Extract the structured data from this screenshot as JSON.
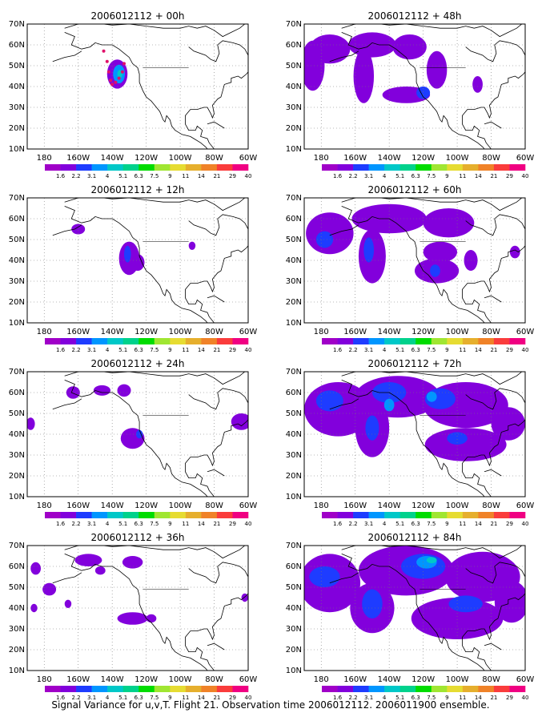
{
  "figure": {
    "caption": "Signal Variance for u,v,T. Flight 21. Observation time 2006012112. 2006011900 ensemble."
  },
  "axes": {
    "x_ticks": [
      {
        "lon": -180,
        "label": "180"
      },
      {
        "lon": -160,
        "label": "160W"
      },
      {
        "lon": -140,
        "label": "140W"
      },
      {
        "lon": -120,
        "label": "120W"
      },
      {
        "lon": -100,
        "label": "100W"
      },
      {
        "lon": -80,
        "label": "80W"
      },
      {
        "lon": -60,
        "label": "60W"
      }
    ],
    "y_ticks": [
      {
        "lat": 10,
        "label": "10N"
      },
      {
        "lat": 20,
        "label": "20N"
      },
      {
        "lat": 30,
        "label": "30N"
      },
      {
        "lat": 40,
        "label": "40N"
      },
      {
        "lat": 50,
        "label": "50N"
      },
      {
        "lat": 60,
        "label": "60N"
      },
      {
        "lat": 70,
        "label": "70N"
      }
    ],
    "lon_range": [
      -190,
      -60
    ],
    "lat_range": [
      10,
      70
    ],
    "grid": "dotted"
  },
  "colorbar": {
    "labels": [
      "1.6",
      "2.2",
      "3.1",
      "4",
      "5.1",
      "6.3",
      "7.5",
      "9",
      "11",
      "14",
      "21",
      "29",
      "40"
    ],
    "colors": [
      "#a000c8",
      "#8200dc",
      "#1e3cff",
      "#0096ff",
      "#00c8c8",
      "#00d28c",
      "#00dc00",
      "#a0e632",
      "#e6dc32",
      "#e6af2d",
      "#f08228",
      "#fa3c3c",
      "#f00082"
    ]
  },
  "chart_data": [
    {
      "type": "heatmap",
      "title": "2006012112 + 00h",
      "blobs": [
        {
          "lon": -137,
          "lat": 46,
          "rx": 6,
          "ry": 7,
          "level": 1
        },
        {
          "lon": -136,
          "lat": 46,
          "rx": 3.5,
          "ry": 4.5,
          "level": 3
        },
        {
          "lon": -135.5,
          "lat": 46,
          "rx": 1.5,
          "ry": 2,
          "level": 4
        }
      ],
      "track": [
        [
          -145,
          57
        ],
        [
          -143,
          52
        ],
        [
          -142,
          47
        ],
        [
          -141,
          43
        ],
        [
          -140,
          41
        ],
        [
          -138,
          42
        ],
        [
          -136,
          44
        ],
        [
          -134,
          47
        ],
        [
          -133,
          51
        ]
      ]
    },
    {
      "type": "heatmap",
      "title": "2006012112 + 48h",
      "blobs": [
        {
          "lon": -175,
          "lat": 58,
          "rx": 12,
          "ry": 7,
          "level": 1
        },
        {
          "lon": -185,
          "lat": 50,
          "rx": 7,
          "ry": 12,
          "level": 1
        },
        {
          "lon": -150,
          "lat": 60,
          "rx": 14,
          "ry": 6,
          "level": 1
        },
        {
          "lon": -128,
          "lat": 59,
          "rx": 10,
          "ry": 6,
          "level": 1
        },
        {
          "lon": -155,
          "lat": 45,
          "rx": 6,
          "ry": 13,
          "level": 1
        },
        {
          "lon": -112,
          "lat": 48,
          "rx": 6,
          "ry": 9,
          "level": 1
        },
        {
          "lon": -130,
          "lat": 36,
          "rx": 14,
          "ry": 4,
          "level": 1
        },
        {
          "lon": -88,
          "lat": 41,
          "rx": 3,
          "ry": 4,
          "level": 1
        },
        {
          "lon": -120,
          "lat": 37,
          "rx": 4,
          "ry": 3,
          "level": 2
        }
      ]
    },
    {
      "type": "heatmap",
      "title": "2006012112 + 12h",
      "blobs": [
        {
          "lon": -160,
          "lat": 55,
          "rx": 4,
          "ry": 2.5,
          "level": 1
        },
        {
          "lon": -130,
          "lat": 41,
          "rx": 6,
          "ry": 8,
          "level": 1
        },
        {
          "lon": -125,
          "lat": 39,
          "rx": 4,
          "ry": 4,
          "level": 1
        },
        {
          "lon": -131,
          "lat": 43,
          "rx": 2,
          "ry": 4,
          "level": 2
        },
        {
          "lon": -93,
          "lat": 47,
          "rx": 2,
          "ry": 2,
          "level": 1
        }
      ]
    },
    {
      "type": "heatmap",
      "title": "2006012112 + 60h",
      "blobs": [
        {
          "lon": -175,
          "lat": 53,
          "rx": 14,
          "ry": 10,
          "level": 1
        },
        {
          "lon": -140,
          "lat": 60,
          "rx": 22,
          "ry": 7,
          "level": 1
        },
        {
          "lon": -105,
          "lat": 58,
          "rx": 15,
          "ry": 7,
          "level": 1
        },
        {
          "lon": -150,
          "lat": 42,
          "rx": 8,
          "ry": 13,
          "level": 1
        },
        {
          "lon": -110,
          "lat": 44,
          "rx": 10,
          "ry": 5,
          "level": 1
        },
        {
          "lon": -112,
          "lat": 35,
          "rx": 13,
          "ry": 6,
          "level": 1
        },
        {
          "lon": -92,
          "lat": 40,
          "rx": 4,
          "ry": 5,
          "level": 1
        },
        {
          "lon": -66,
          "lat": 44,
          "rx": 3,
          "ry": 3,
          "level": 1
        },
        {
          "lon": -178,
          "lat": 50,
          "rx": 5,
          "ry": 4,
          "level": 2
        },
        {
          "lon": -152,
          "lat": 45,
          "rx": 3,
          "ry": 6,
          "level": 2
        },
        {
          "lon": -113,
          "lat": 35,
          "rx": 3,
          "ry": 3,
          "level": 2
        }
      ]
    },
    {
      "type": "heatmap",
      "title": "2006012112 + 24h",
      "blobs": [
        {
          "lon": -163,
          "lat": 60,
          "rx": 4,
          "ry": 3,
          "level": 1
        },
        {
          "lon": -146,
          "lat": 61,
          "rx": 5,
          "ry": 2.5,
          "level": 1
        },
        {
          "lon": -133,
          "lat": 61,
          "rx": 4,
          "ry": 3,
          "level": 1
        },
        {
          "lon": -128,
          "lat": 38,
          "rx": 7,
          "ry": 5,
          "level": 1
        },
        {
          "lon": -188,
          "lat": 45,
          "rx": 2.5,
          "ry": 3,
          "level": 1
        },
        {
          "lon": -64,
          "lat": 46,
          "rx": 6,
          "ry": 4,
          "level": 1
        },
        {
          "lon": -124,
          "lat": 40,
          "rx": 2,
          "ry": 2,
          "level": 2
        }
      ]
    },
    {
      "type": "heatmap",
      "title": "2006012112 + 72h",
      "blobs": [
        {
          "lon": -170,
          "lat": 52,
          "rx": 20,
          "ry": 13,
          "level": 1
        },
        {
          "lon": -135,
          "lat": 58,
          "rx": 25,
          "ry": 10,
          "level": 1
        },
        {
          "lon": -95,
          "lat": 54,
          "rx": 25,
          "ry": 11,
          "level": 1
        },
        {
          "lon": -150,
          "lat": 43,
          "rx": 10,
          "ry": 14,
          "level": 1
        },
        {
          "lon": -95,
          "lat": 35,
          "rx": 24,
          "ry": 8,
          "level": 1
        },
        {
          "lon": -70,
          "lat": 45,
          "rx": 10,
          "ry": 8,
          "level": 1
        },
        {
          "lon": -175,
          "lat": 56,
          "rx": 8,
          "ry": 5,
          "level": 2
        },
        {
          "lon": -140,
          "lat": 60,
          "rx": 10,
          "ry": 5,
          "level": 2
        },
        {
          "lon": -110,
          "lat": 57,
          "rx": 9,
          "ry": 5,
          "level": 2
        },
        {
          "lon": -150,
          "lat": 43,
          "rx": 4,
          "ry": 6,
          "level": 2
        },
        {
          "lon": -100,
          "lat": 38,
          "rx": 6,
          "ry": 3,
          "level": 2
        },
        {
          "lon": -140,
          "lat": 54,
          "rx": 3,
          "ry": 3,
          "level": 3
        },
        {
          "lon": -115,
          "lat": 58,
          "rx": 3,
          "ry": 2.5,
          "level": 3
        }
      ]
    },
    {
      "type": "heatmap",
      "title": "2006012112 + 36h",
      "blobs": [
        {
          "lon": -154,
          "lat": 63,
          "rx": 8,
          "ry": 3,
          "level": 1
        },
        {
          "lon": -128,
          "lat": 62,
          "rx": 6,
          "ry": 3,
          "level": 1
        },
        {
          "lon": -147,
          "lat": 58,
          "rx": 3,
          "ry": 2,
          "level": 1
        },
        {
          "lon": -185,
          "lat": 59,
          "rx": 3,
          "ry": 3,
          "level": 1
        },
        {
          "lon": -177,
          "lat": 49,
          "rx": 4,
          "ry": 3,
          "level": 1
        },
        {
          "lon": -166,
          "lat": 42,
          "rx": 2,
          "ry": 2,
          "level": 1
        },
        {
          "lon": -186,
          "lat": 40,
          "rx": 2,
          "ry": 2,
          "level": 1
        },
        {
          "lon": -128,
          "lat": 35,
          "rx": 9,
          "ry": 3,
          "level": 1
        },
        {
          "lon": -117,
          "lat": 35,
          "rx": 3,
          "ry": 2,
          "level": 1
        },
        {
          "lon": -62,
          "lat": 45,
          "rx": 2,
          "ry": 2,
          "level": 1
        }
      ]
    },
    {
      "type": "heatmap",
      "title": "2006012112 + 84h",
      "blobs": [
        {
          "lon": -175,
          "lat": 52,
          "rx": 18,
          "ry": 14,
          "level": 1
        },
        {
          "lon": -130,
          "lat": 58,
          "rx": 28,
          "ry": 12,
          "level": 1
        },
        {
          "lon": -85,
          "lat": 55,
          "rx": 22,
          "ry": 12,
          "level": 1
        },
        {
          "lon": -150,
          "lat": 40,
          "rx": 13,
          "ry": 12,
          "level": 1
        },
        {
          "lon": -100,
          "lat": 35,
          "rx": 27,
          "ry": 10,
          "level": 1
        },
        {
          "lon": -68,
          "lat": 43,
          "rx": 10,
          "ry": 10,
          "level": 1
        },
        {
          "lon": -178,
          "lat": 55,
          "rx": 9,
          "ry": 5,
          "level": 2
        },
        {
          "lon": -150,
          "lat": 42,
          "rx": 6,
          "ry": 7,
          "level": 2
        },
        {
          "lon": -120,
          "lat": 60,
          "rx": 13,
          "ry": 6,
          "level": 2
        },
        {
          "lon": -95,
          "lat": 42,
          "rx": 10,
          "ry": 4,
          "level": 2
        },
        {
          "lon": -118,
          "lat": 62,
          "rx": 6,
          "ry": 3,
          "level": 3
        },
        {
          "lon": -115,
          "lat": 63,
          "rx": 3,
          "ry": 1.5,
          "level": 4
        }
      ]
    }
  ]
}
